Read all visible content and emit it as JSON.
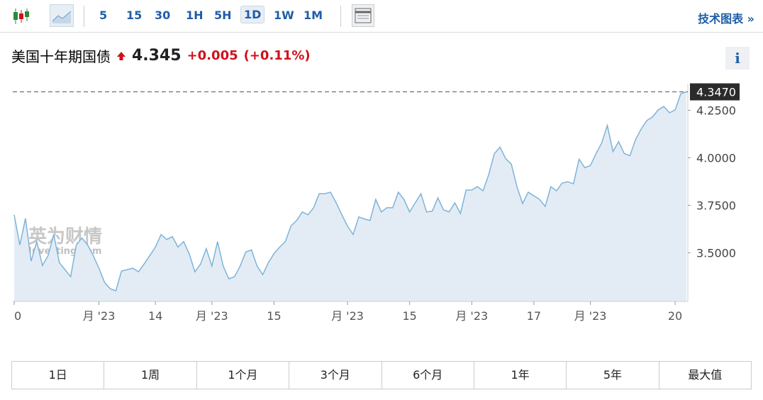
{
  "toolbar": {
    "intervals": [
      "5",
      "15",
      "30",
      "1H",
      "5H",
      "1D",
      "1W",
      "1M"
    ],
    "selected_interval": "1D",
    "tech_chart": "技术图表 »"
  },
  "header": {
    "title": "美国十年期国债",
    "price": "4.345",
    "change": "+0.005",
    "change_pct": "(+0.11%)",
    "info": "i"
  },
  "watermark": {
    "brand": "英为财情",
    "site": "Investing.com"
  },
  "chart_data": {
    "type": "area",
    "categories": [
      "0",
      null,
      null,
      null,
      null,
      null,
      null,
      null,
      null,
      null,
      null,
      null,
      null,
      null,
      null,
      "月 '23",
      null,
      null,
      null,
      null,
      null,
      null,
      null,
      null,
      null,
      "14",
      null,
      null,
      null,
      null,
      null,
      null,
      null,
      null,
      null,
      "月 '23",
      null,
      null,
      null,
      null,
      null,
      null,
      null,
      null,
      null,
      null,
      "15",
      null,
      null,
      null,
      null,
      null,
      null,
      null,
      null,
      null,
      null,
      null,
      null,
      "月 '23",
      null,
      null,
      null,
      null,
      null,
      null,
      null,
      null,
      null,
      null,
      "15",
      null,
      null,
      null,
      null,
      null,
      null,
      null,
      null,
      null,
      null,
      "月 '23",
      null,
      null,
      null,
      null,
      null,
      null,
      null,
      null,
      null,
      null,
      "17",
      null,
      null,
      null,
      null,
      null,
      null,
      null,
      null,
      null,
      "月 '23",
      null,
      null,
      null,
      null,
      null,
      null,
      null,
      null,
      null,
      null,
      null,
      null,
      null,
      null,
      "20",
      null,
      null
    ],
    "values": [
      3.7,
      3.541,
      3.681,
      3.456,
      3.559,
      3.433,
      3.485,
      3.596,
      3.448,
      3.411,
      3.374,
      3.541,
      3.578,
      3.541,
      3.485,
      3.419,
      3.344,
      3.311,
      3.3,
      3.404,
      3.411,
      3.419,
      3.4,
      3.441,
      3.485,
      3.53,
      3.596,
      3.57,
      3.585,
      3.53,
      3.559,
      3.493,
      3.4,
      3.441,
      3.522,
      3.43,
      3.559,
      3.43,
      3.363,
      3.374,
      3.43,
      3.504,
      3.515,
      3.43,
      3.385,
      3.448,
      3.496,
      3.53,
      3.559,
      3.641,
      3.67,
      3.715,
      3.7,
      3.737,
      3.811,
      3.811,
      3.819,
      3.763,
      3.7,
      3.641,
      3.596,
      3.689,
      3.678,
      3.67,
      3.781,
      3.715,
      3.737,
      3.737,
      3.819,
      3.781,
      3.715,
      3.763,
      3.811,
      3.715,
      3.719,
      3.789,
      3.726,
      3.715,
      3.763,
      3.707,
      3.83,
      3.83,
      3.848,
      3.826,
      3.911,
      4.022,
      4.056,
      3.996,
      3.967,
      3.848,
      3.759,
      3.819,
      3.8,
      3.781,
      3.744,
      3.848,
      3.826,
      3.867,
      3.874,
      3.863,
      3.993,
      3.948,
      3.959,
      4.022,
      4.078,
      4.17,
      4.033,
      4.085,
      4.022,
      4.011,
      4.096,
      4.152,
      4.196,
      4.215,
      4.252,
      4.27,
      4.237,
      4.252,
      4.337,
      4.347
    ],
    "color": "#7fb3d8",
    "fill": "#e3ecf5",
    "ylim": [
      3.244,
      4.39
    ],
    "yticks": [
      {
        "value": 3.5,
        "label": "3.5000"
      },
      {
        "value": 3.75,
        "label": "3.7500"
      },
      {
        "value": 4.0,
        "label": "4.0000"
      },
      {
        "value": 4.25,
        "label": "4.2500"
      }
    ],
    "last_price": {
      "value": 4.347,
      "label": "4.3470"
    }
  },
  "range_buttons": [
    "1日",
    "1周",
    "1个月",
    "3个月",
    "6个月",
    "1年",
    "5年",
    "最大值"
  ]
}
